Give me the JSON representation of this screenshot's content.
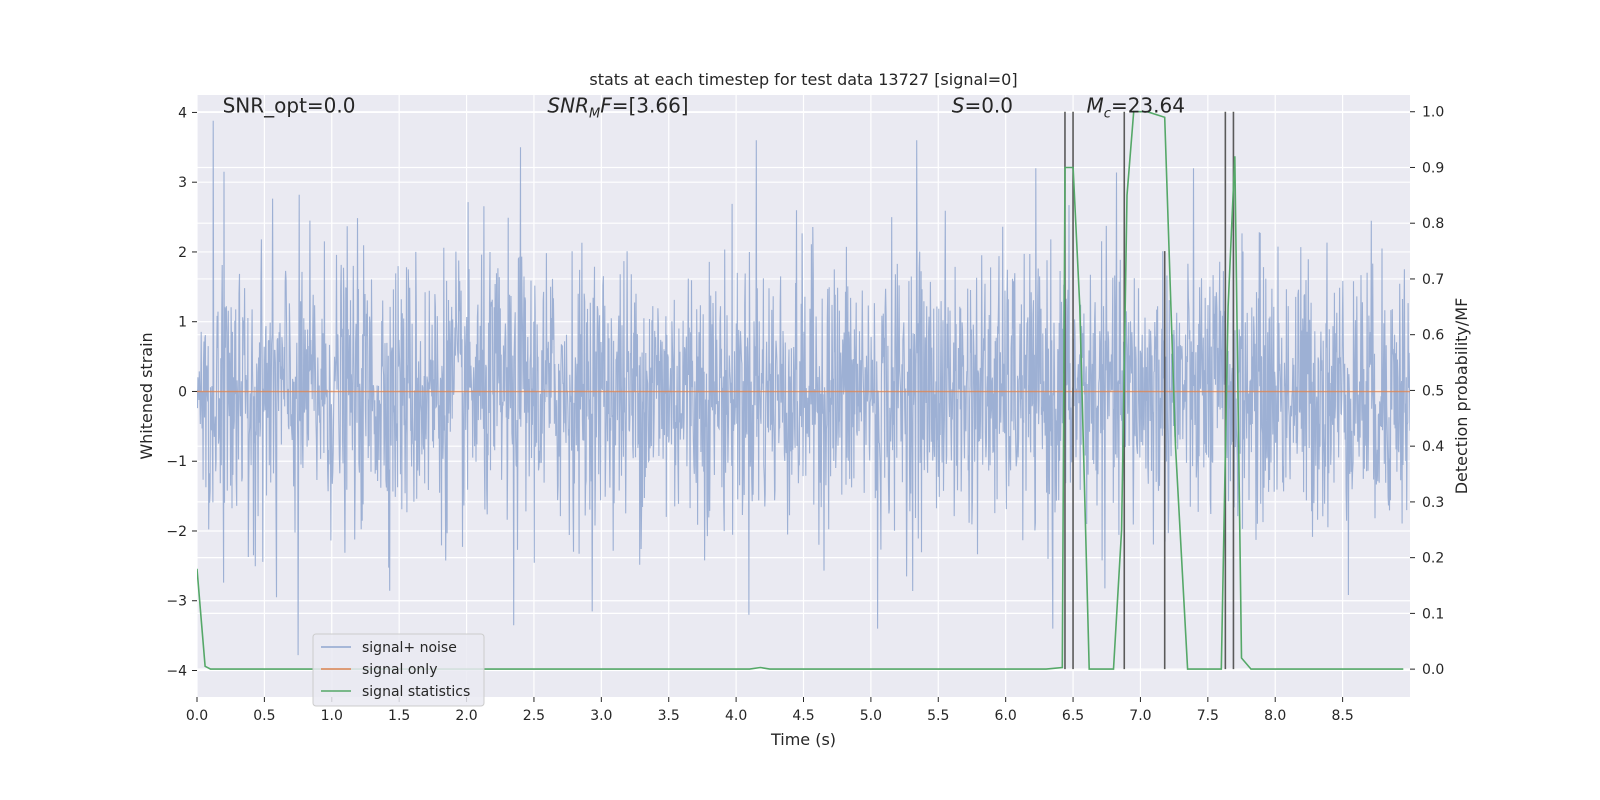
{
  "chart_data": {
    "type": "line",
    "title": "stats at each timestep for test data 13727 [signal=0]",
    "xlabel": "Time (s)",
    "ylabel_left": "Whitened strain",
    "ylabel_right": "Detection probability/MF",
    "xlim": [
      0.0,
      9.0
    ],
    "ylim_left": [
      -4.38,
      4.25
    ],
    "ylim_right": [
      -0.05,
      1.03
    ],
    "x_ticks": [
      0.0,
      0.5,
      1.0,
      1.5,
      2.0,
      2.5,
      3.0,
      3.5,
      4.0,
      4.5,
      5.0,
      5.5,
      6.0,
      6.5,
      7.0,
      7.5,
      8.0,
      8.5
    ],
    "x_tick_labels": [
      "0.0",
      "0.5",
      "1.0",
      "1.5",
      "2.0",
      "2.5",
      "3.0",
      "3.5",
      "4.0",
      "4.5",
      "5.0",
      "5.5",
      "6.0",
      "6.5",
      "7.0",
      "7.5",
      "8.0",
      "8.5"
    ],
    "y_left_ticks": [
      4,
      3,
      2,
      1,
      0,
      -1,
      -2,
      -3,
      -4
    ],
    "y_left_tick_labels": [
      "4",
      "3",
      "2",
      "1",
      "0",
      "−1",
      "−2",
      "−3",
      "−4"
    ],
    "y_right_ticks": [
      1.0,
      0.9,
      0.8,
      0.7,
      0.6,
      0.5,
      0.4,
      0.3,
      0.2,
      0.1,
      0.0
    ],
    "y_right_tick_labels": [
      "1.0",
      "0.9",
      "0.8",
      "0.7",
      "0.6",
      "0.5",
      "0.4",
      "0.3",
      "0.2",
      "0.1",
      "0.0"
    ],
    "grid": true,
    "annotations": [
      {
        "text": "SNR_opt=0.0",
        "x": 0.19,
        "y": 4.1
      },
      {
        "text": "SNR_MF=[3.66]",
        "x": 2.6,
        "y": 4.1
      },
      {
        "text": "S=0.0",
        "x": 5.6,
        "y": 4.1
      },
      {
        "text": "M_c=23.64",
        "x": 6.6,
        "y": 4.1
      }
    ],
    "series": [
      {
        "name": "signal+ noise",
        "axis": "left",
        "color": "#8fa6cf",
        "envelope": "noise",
        "x_range": [
          0.0,
          9.0
        ],
        "amplitude_sigma": 1.0,
        "peaks": [
          {
            "x": 0.12,
            "y": 3.88
          },
          {
            "x": 0.2,
            "y": 3.15
          },
          {
            "x": 0.75,
            "y": -3.78
          },
          {
            "x": 0.59,
            "y": -2.95
          },
          {
            "x": 2.4,
            "y": 3.5
          },
          {
            "x": 2.35,
            "y": -3.35
          },
          {
            "x": 4.15,
            "y": 3.6
          },
          {
            "x": 5.34,
            "y": 3.6
          },
          {
            "x": 5.05,
            "y": -3.4
          },
          {
            "x": 6.35,
            "y": -3.4
          }
        ]
      },
      {
        "name": "signal only",
        "axis": "left",
        "color": "#dd8452",
        "x": [
          0.0,
          9.0
        ],
        "y": [
          0.0,
          0.0
        ]
      },
      {
        "name": "signal statistics",
        "axis": "right",
        "color": "#55a868",
        "x": [
          0.0,
          0.06,
          0.1,
          0.2,
          4.1,
          4.18,
          4.25,
          6.3,
          6.42,
          6.44,
          6.5,
          6.55,
          6.62,
          6.8,
          6.86,
          6.9,
          6.95,
          7.05,
          7.18,
          7.26,
          7.35,
          7.4,
          7.6,
          7.65,
          7.7,
          7.75,
          7.82,
          7.88,
          8.95
        ],
        "y": [
          0.18,
          0.005,
          0.0,
          0.0,
          0.0,
          0.003,
          0.0,
          0.0,
          0.003,
          0.9,
          0.9,
          0.65,
          0.0,
          0.0,
          0.25,
          0.85,
          1.0,
          1.0,
          0.99,
          0.4,
          0.0,
          0.0,
          0.0,
          0.65,
          0.92,
          0.02,
          0.0,
          0.0,
          0.0
        ]
      }
    ],
    "vertical_lines": {
      "color": "#5a5a5a",
      "axis": "right",
      "segments": [
        {
          "x": 6.44,
          "y0": 0.0,
          "y1": 1.0
        },
        {
          "x": 6.5,
          "y0": 0.0,
          "y1": 1.0
        },
        {
          "x": 6.88,
          "y0": 0.0,
          "y1": 1.0
        },
        {
          "x": 7.18,
          "y0": 0.0,
          "y1": 0.75
        },
        {
          "x": 7.63,
          "y0": 0.0,
          "y1": 1.0
        },
        {
          "x": 7.69,
          "y0": 0.0,
          "y1": 1.0
        }
      ]
    },
    "legend": {
      "position": "lower-left",
      "entries": [
        {
          "label": "signal+ noise",
          "color": "#8fa6cf"
        },
        {
          "label": "signal only",
          "color": "#dd8452"
        },
        {
          "label": "signal statistics",
          "color": "#55a868"
        }
      ]
    },
    "colors": {
      "plot_background": "#eaeaf2",
      "grid": "#ffffff"
    }
  }
}
